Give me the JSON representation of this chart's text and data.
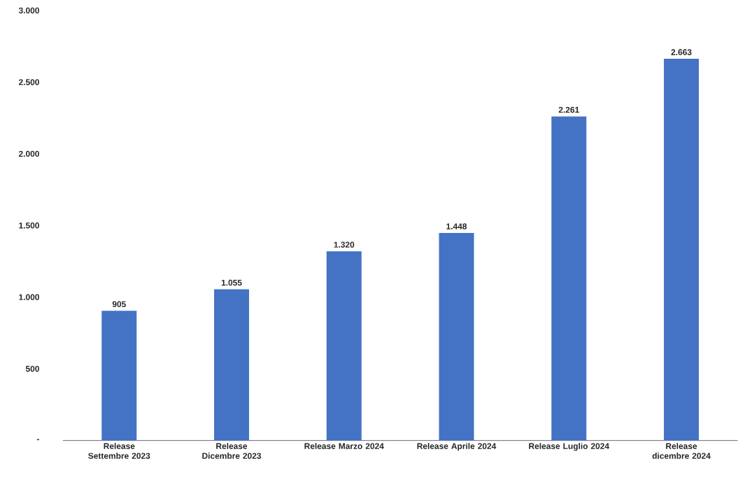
{
  "chart_data": {
    "type": "bar",
    "categories": [
      "Release Settembre 2023",
      "Release Dicembre 2023",
      "Release Marzo 2024",
      "Release Aprile 2024",
      "Release Luglio 2024",
      "Release dicembre 2024"
    ],
    "values": [
      905,
      1055,
      1320,
      1448,
      2261,
      2663
    ],
    "value_labels": [
      "905",
      "1.055",
      "1.320",
      "1.448",
      "2.261",
      "2.663"
    ],
    "color": "#4472c4",
    "ylim": [
      0,
      3000
    ],
    "yticks": [
      {
        "value": 0,
        "label": "-"
      },
      {
        "value": 500,
        "label": "500"
      },
      {
        "value": 1000,
        "label": "1.000"
      },
      {
        "value": 1500,
        "label": "1.500"
      },
      {
        "value": 2000,
        "label": "2.000"
      },
      {
        "value": 2500,
        "label": "2.500"
      },
      {
        "value": 3000,
        "label": "3.000"
      }
    ],
    "grid": false
  }
}
